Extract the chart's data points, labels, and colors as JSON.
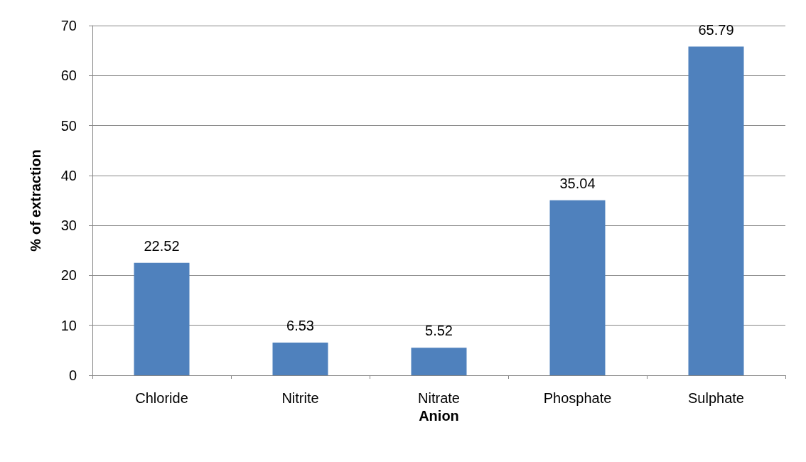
{
  "chart_data": {
    "type": "bar",
    "xlabel": "Anion",
    "ylabel": "% of extraction",
    "categories": [
      "Chloride",
      "Nitrite",
      "Nitrate",
      "Phosphate",
      "Sulphate"
    ],
    "values": [
      22.52,
      6.53,
      5.52,
      35.04,
      65.79
    ],
    "color": "#4f81bd",
    "ylim": [
      0,
      70
    ],
    "yticks": [
      0,
      10,
      20,
      30,
      40,
      50,
      60,
      70
    ],
    "grid": "y",
    "data_labels": true
  }
}
